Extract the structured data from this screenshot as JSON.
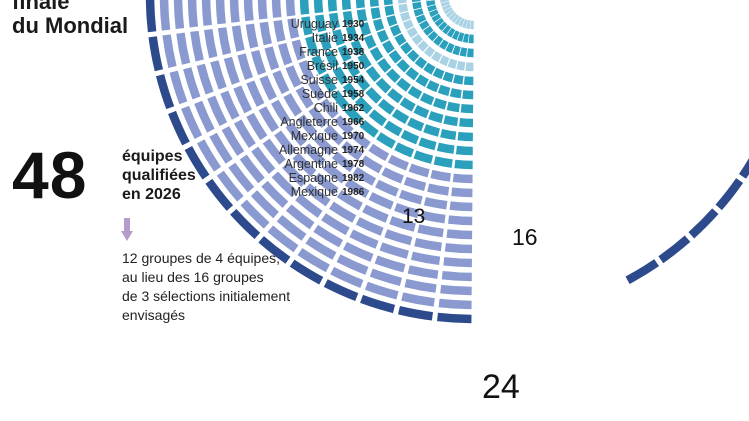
{
  "headline": {
    "line1": "finale",
    "line2": "du Mondial"
  },
  "stat": {
    "number": "48",
    "caption_lines": [
      "équipes",
      "qualifiées",
      "en 2026"
    ],
    "note_lines": [
      "12 groupes de 4 équipes,",
      "au lieu des 16 groupes",
      "de 3 sélections initialement",
      "envisagés"
    ]
  },
  "colors": {
    "light": "#a9d3e4",
    "teal": "#2aa0bc",
    "periwinkle": "#8a9ad0",
    "navy": "#2c4a8c",
    "arrow": "#b49ccc"
  },
  "chart_data": {
    "type": "radial-bar",
    "title": "",
    "series_label_unit": "équipes",
    "editions": [
      {
        "country": "Uruguay",
        "year": "1930",
        "teams": 13
      },
      {
        "country": "Italie",
        "year": "1934",
        "teams": 16
      },
      {
        "country": "France",
        "year": "1938",
        "teams": 15
      },
      {
        "country": "Brésil",
        "year": "1950",
        "teams": 13
      },
      {
        "country": "Suisse",
        "year": "1954",
        "teams": 16
      },
      {
        "country": "Suède",
        "year": "1958",
        "teams": 16
      },
      {
        "country": "Chili",
        "year": "1962",
        "teams": 16
      },
      {
        "country": "Angleterre",
        "year": "1966",
        "teams": 16
      },
      {
        "country": "Mexique",
        "year": "1970",
        "teams": 16
      },
      {
        "country": "Allemagne",
        "year": "1974",
        "teams": 16
      },
      {
        "country": "Argentine",
        "year": "1978",
        "teams": 16
      },
      {
        "country": "Espagne",
        "year": "1982",
        "teams": 24
      },
      {
        "country": "Mexique",
        "year": "1986",
        "teams": 24
      },
      {
        "country": "",
        "year": "",
        "teams": 24
      },
      {
        "country": "",
        "year": "",
        "teams": 32
      },
      {
        "country": "",
        "year": "",
        "teams": 32
      },
      {
        "country": "",
        "year": "",
        "teams": 32
      },
      {
        "country": "",
        "year": "",
        "teams": 32
      },
      {
        "country": "",
        "year": "",
        "teams": 32
      },
      {
        "country": "",
        "year": "",
        "teams": 32
      },
      {
        "country": "",
        "year": "",
        "teams": 32
      },
      {
        "country": "",
        "year": "",
        "teams": 48
      }
    ],
    "ring_labels": [
      "13",
      "16",
      "24"
    ]
  }
}
